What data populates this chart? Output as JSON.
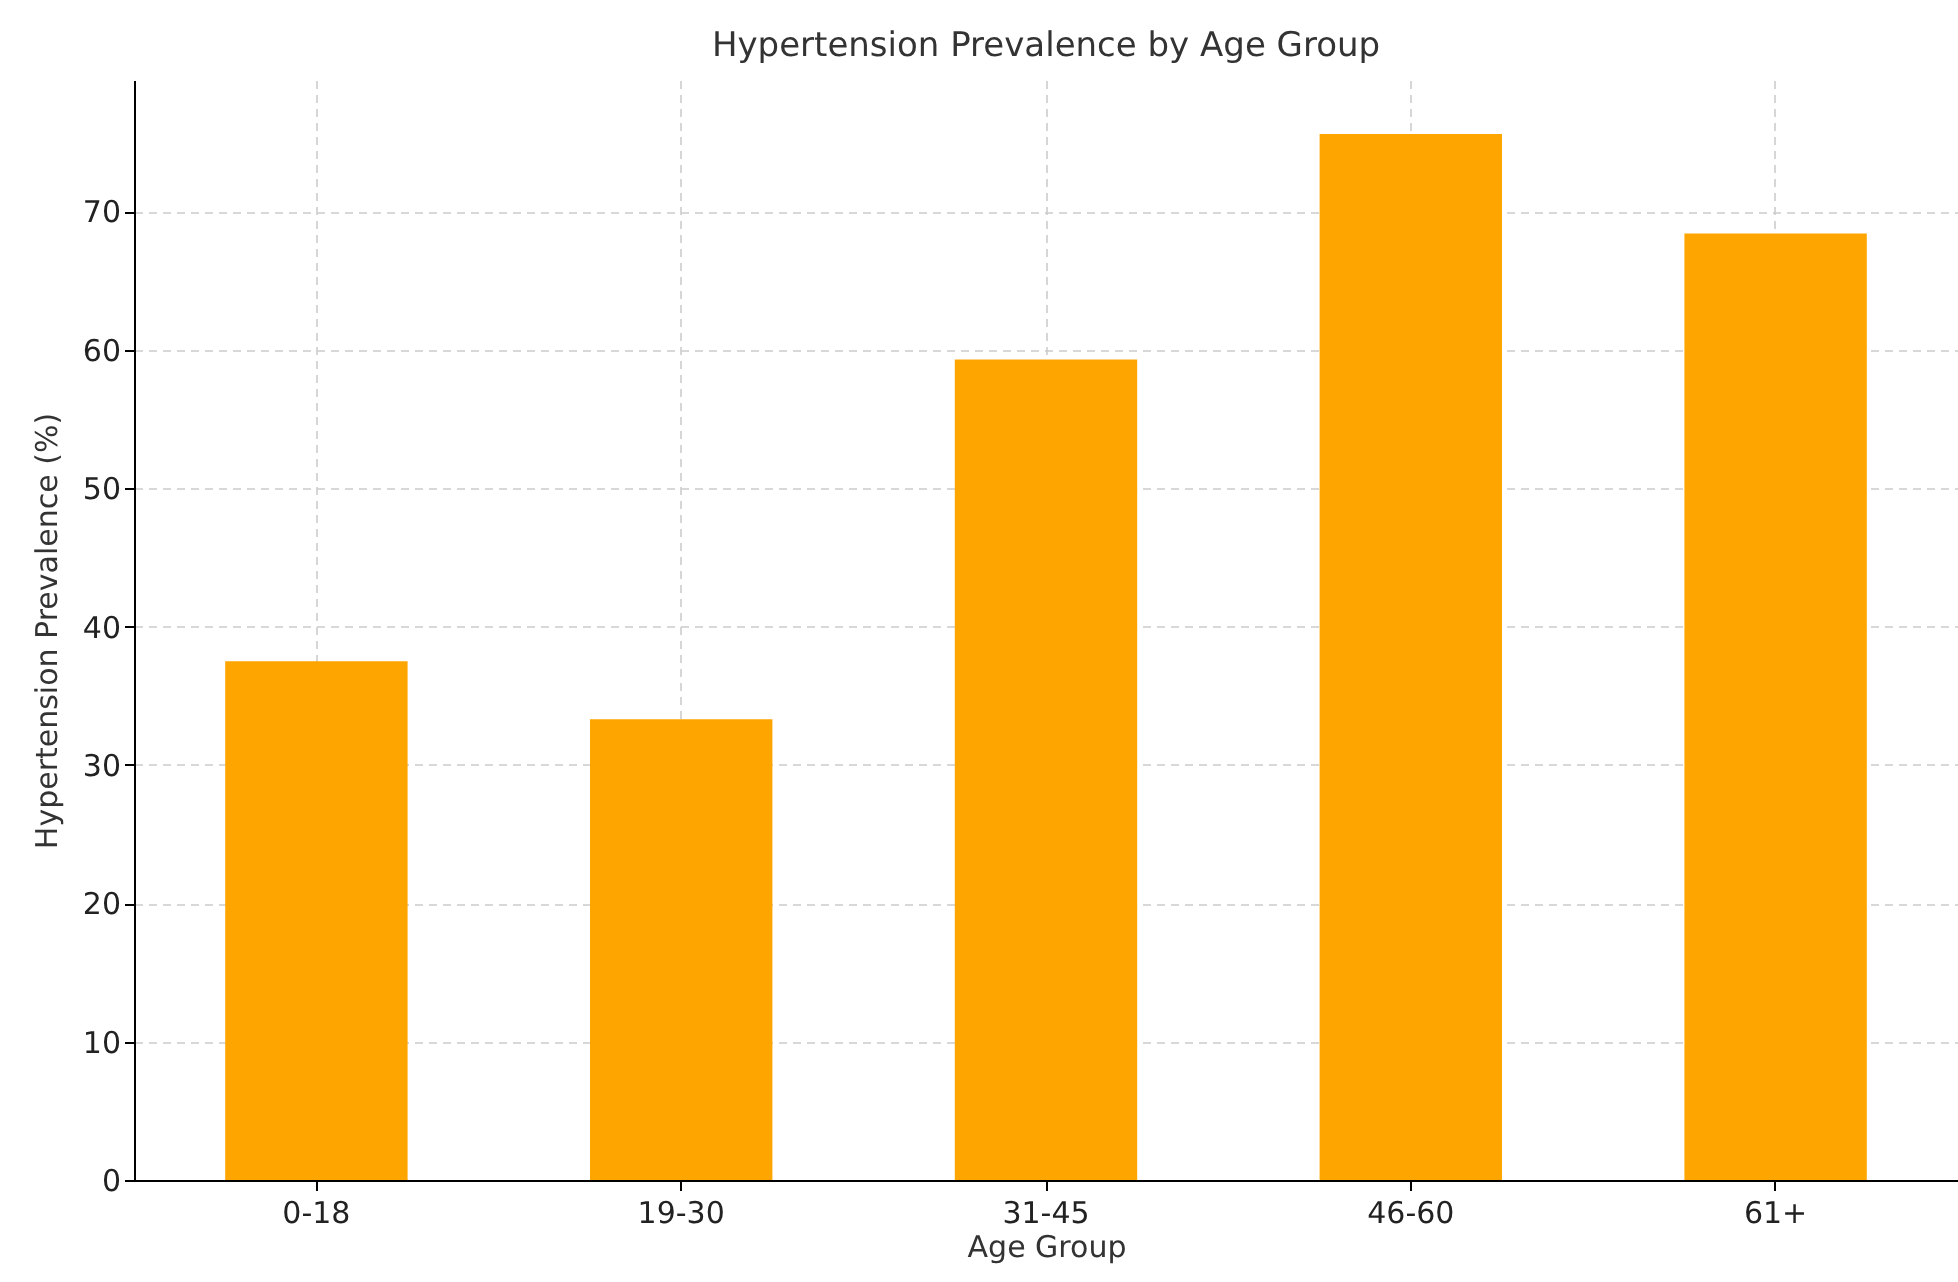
{
  "chart_data": {
    "type": "bar",
    "title": "Hypertension Prevalence by Age Group",
    "xlabel": "Age Group",
    "ylabel": "Hypertension Prevalence (%)",
    "categories": [
      "0-18",
      "19-30",
      "31-45",
      "46-60",
      "61+"
    ],
    "values": [
      37.5,
      33.3,
      59.3,
      75.6,
      68.4
    ],
    "color": "#ffa500",
    "ylim": [
      0,
      79.5
    ],
    "yticks": [
      0,
      10,
      20,
      30,
      40,
      50,
      60,
      70
    ],
    "grid": true
  }
}
